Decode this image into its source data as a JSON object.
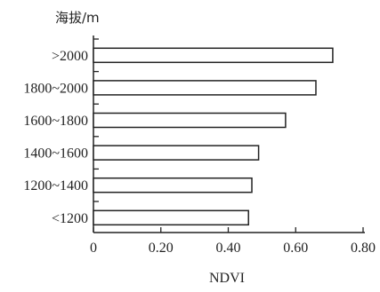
{
  "chart_data": {
    "type": "bar",
    "orientation": "horizontal",
    "categories": [
      ">2000",
      "1800~2000",
      "1600~1800",
      "1400~1600",
      "1200~1400",
      "<1200"
    ],
    "values": [
      0.71,
      0.66,
      0.57,
      0.49,
      0.47,
      0.46
    ],
    "xlabel": "NDVI",
    "ylabel": "海拔/m",
    "xlim": [
      0,
      0.8
    ],
    "xticks": [
      "0",
      "0.20",
      "0.40",
      "0.60",
      "0.80"
    ],
    "grid": false,
    "colors": {
      "bar_fill": "#ffffff",
      "bar_stroke": "#222222",
      "axis": "#222222"
    }
  }
}
